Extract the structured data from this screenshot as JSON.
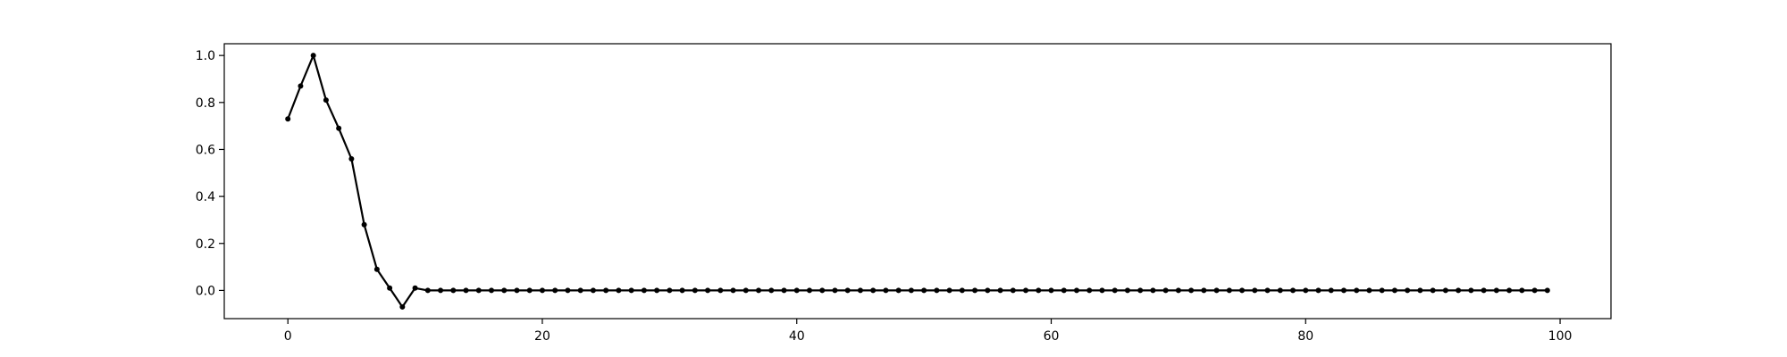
{
  "chart_data": {
    "type": "line",
    "title": "",
    "xlabel": "",
    "ylabel": "",
    "xlim": [
      -5,
      104
    ],
    "ylim": [
      -0.12,
      1.05
    ],
    "grid": false,
    "legend": "none",
    "x_ticks": [
      0,
      20,
      40,
      60,
      80,
      100
    ],
    "x_tick_labels": [
      "0",
      "20",
      "40",
      "60",
      "80",
      "100"
    ],
    "y_ticks": [
      0.0,
      0.2,
      0.4,
      0.6,
      0.8,
      1.0
    ],
    "y_tick_labels": [
      "0.0",
      "0.2",
      "0.4",
      "0.6",
      "0.8",
      "1.0"
    ],
    "series": [
      {
        "color": "#000000",
        "marker": "dot",
        "x": [
          0,
          1,
          2,
          3,
          4,
          5,
          6,
          7,
          8,
          9,
          10,
          11,
          12,
          13,
          14,
          15,
          16,
          17,
          18,
          19,
          20,
          21,
          22,
          23,
          24,
          25,
          26,
          27,
          28,
          29,
          30,
          31,
          32,
          33,
          34,
          35,
          36,
          37,
          38,
          39,
          40,
          41,
          42,
          43,
          44,
          45,
          46,
          47,
          48,
          49,
          50,
          51,
          52,
          53,
          54,
          55,
          56,
          57,
          58,
          59,
          60,
          61,
          62,
          63,
          64,
          65,
          66,
          67,
          68,
          69,
          70,
          71,
          72,
          73,
          74,
          75,
          76,
          77,
          78,
          79,
          80,
          81,
          82,
          83,
          84,
          85,
          86,
          87,
          88,
          89,
          90,
          91,
          92,
          93,
          94,
          95,
          96,
          97,
          98,
          99
        ],
        "y": [
          0.73,
          0.87,
          1.0,
          0.81,
          0.69,
          0.56,
          0.28,
          0.09,
          0.01,
          -0.07,
          0.01,
          0,
          0,
          0,
          0,
          0,
          0,
          0,
          0,
          0,
          0,
          0,
          0,
          0,
          0,
          0,
          0,
          0,
          0,
          0,
          0,
          0,
          0,
          0,
          0,
          0,
          0,
          0,
          0,
          0,
          0,
          0,
          0,
          0,
          0,
          0,
          0,
          0,
          0,
          0,
          0,
          0,
          0,
          0,
          0,
          0,
          0,
          0,
          0,
          0,
          0,
          0,
          0,
          0,
          0,
          0,
          0,
          0,
          0,
          0,
          0,
          0,
          0,
          0,
          0,
          0,
          0,
          0,
          0,
          0,
          0,
          0,
          0,
          0,
          0,
          0,
          0,
          0,
          0,
          0,
          0,
          0,
          0,
          0,
          0,
          0,
          0,
          0,
          0,
          0
        ]
      }
    ]
  }
}
